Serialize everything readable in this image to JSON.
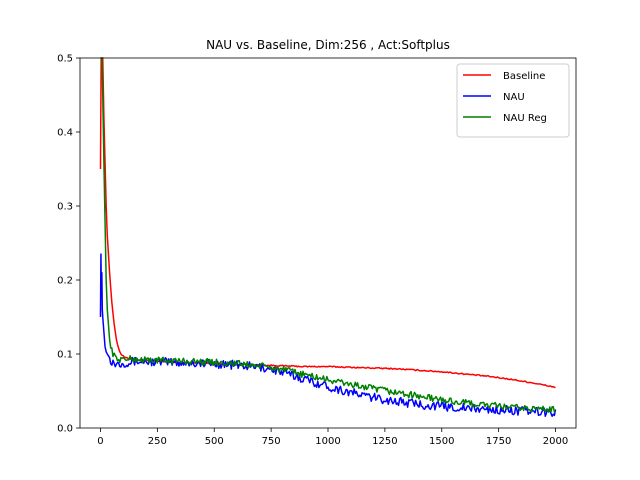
{
  "chart_data": {
    "type": "line",
    "title": "NAU vs. Baseline, Dim:256 , Act:Softplus",
    "xlabel": "",
    "ylabel": "",
    "xlim": [
      -90,
      2090
    ],
    "ylim": [
      0.0,
      0.5
    ],
    "xticks": [
      0,
      250,
      500,
      750,
      1000,
      1250,
      1500,
      1750,
      2000
    ],
    "xtick_labels": [
      "0",
      "250",
      "500",
      "750",
      "1000",
      "1250",
      "1500",
      "1750",
      "2000"
    ],
    "yticks": [
      0.0,
      0.1,
      0.2,
      0.3,
      0.4,
      0.5
    ],
    "ytick_labels": [
      "0.0",
      "0.1",
      "0.2",
      "0.3",
      "0.4",
      "0.5"
    ],
    "legend_position": "top-right",
    "grid": false,
    "series": [
      {
        "name": "Baseline",
        "color": "#ff0000",
        "noise": 0.0008,
        "x": [
          0,
          3,
          6,
          10,
          15,
          20,
          25,
          30,
          40,
          50,
          60,
          70,
          80,
          90,
          100,
          110,
          120,
          140,
          160,
          200,
          250,
          300,
          400,
          500,
          600,
          700,
          800,
          900,
          1000,
          1100,
          1200,
          1300,
          1400,
          1500,
          1600,
          1700,
          1800,
          1900,
          2000
        ],
        "y": [
          0.35,
          0.5,
          0.5,
          0.5,
          0.42,
          0.36,
          0.3,
          0.26,
          0.21,
          0.17,
          0.14,
          0.12,
          0.107,
          0.1,
          0.097,
          0.095,
          0.094,
          0.093,
          0.092,
          0.091,
          0.09,
          0.089,
          0.088,
          0.087,
          0.086,
          0.085,
          0.084,
          0.083,
          0.083,
          0.082,
          0.081,
          0.08,
          0.078,
          0.076,
          0.073,
          0.07,
          0.066,
          0.061,
          0.055
        ]
      },
      {
        "name": "NAU",
        "color": "#0000ff",
        "noise": 0.006,
        "x": [
          0,
          2,
          4,
          6,
          8,
          10,
          15,
          20,
          25,
          30,
          40,
          50,
          60,
          70,
          80,
          100,
          150,
          200,
          300,
          400,
          500,
          600,
          700,
          750,
          800,
          900,
          1000,
          1100,
          1200,
          1300,
          1400,
          1500,
          1600,
          1700,
          1800,
          1900,
          2000
        ],
        "y": [
          0.15,
          0.235,
          0.18,
          0.21,
          0.16,
          0.15,
          0.13,
          0.11,
          0.103,
          0.1,
          0.095,
          0.09,
          0.088,
          0.087,
          0.087,
          0.088,
          0.09,
          0.09,
          0.089,
          0.088,
          0.087,
          0.085,
          0.082,
          0.08,
          0.075,
          0.066,
          0.056,
          0.048,
          0.041,
          0.036,
          0.032,
          0.029,
          0.027,
          0.025,
          0.024,
          0.022,
          0.021
        ]
      },
      {
        "name": "NAU Reg",
        "color": "#008000",
        "noise": 0.0045,
        "x": [
          0,
          3,
          6,
          10,
          15,
          20,
          25,
          30,
          40,
          50,
          60,
          70,
          80,
          100,
          150,
          200,
          300,
          400,
          500,
          600,
          700,
          800,
          900,
          1000,
          1100,
          1200,
          1300,
          1400,
          1500,
          1600,
          1700,
          1800,
          1900,
          2000
        ],
        "y": [
          0.5,
          0.5,
          0.5,
          0.45,
          0.36,
          0.28,
          0.2,
          0.16,
          0.12,
          0.105,
          0.097,
          0.094,
          0.093,
          0.093,
          0.093,
          0.092,
          0.091,
          0.09,
          0.089,
          0.087,
          0.084,
          0.079,
          0.072,
          0.065,
          0.059,
          0.053,
          0.048,
          0.043,
          0.038,
          0.034,
          0.031,
          0.028,
          0.026,
          0.025
        ]
      }
    ]
  }
}
